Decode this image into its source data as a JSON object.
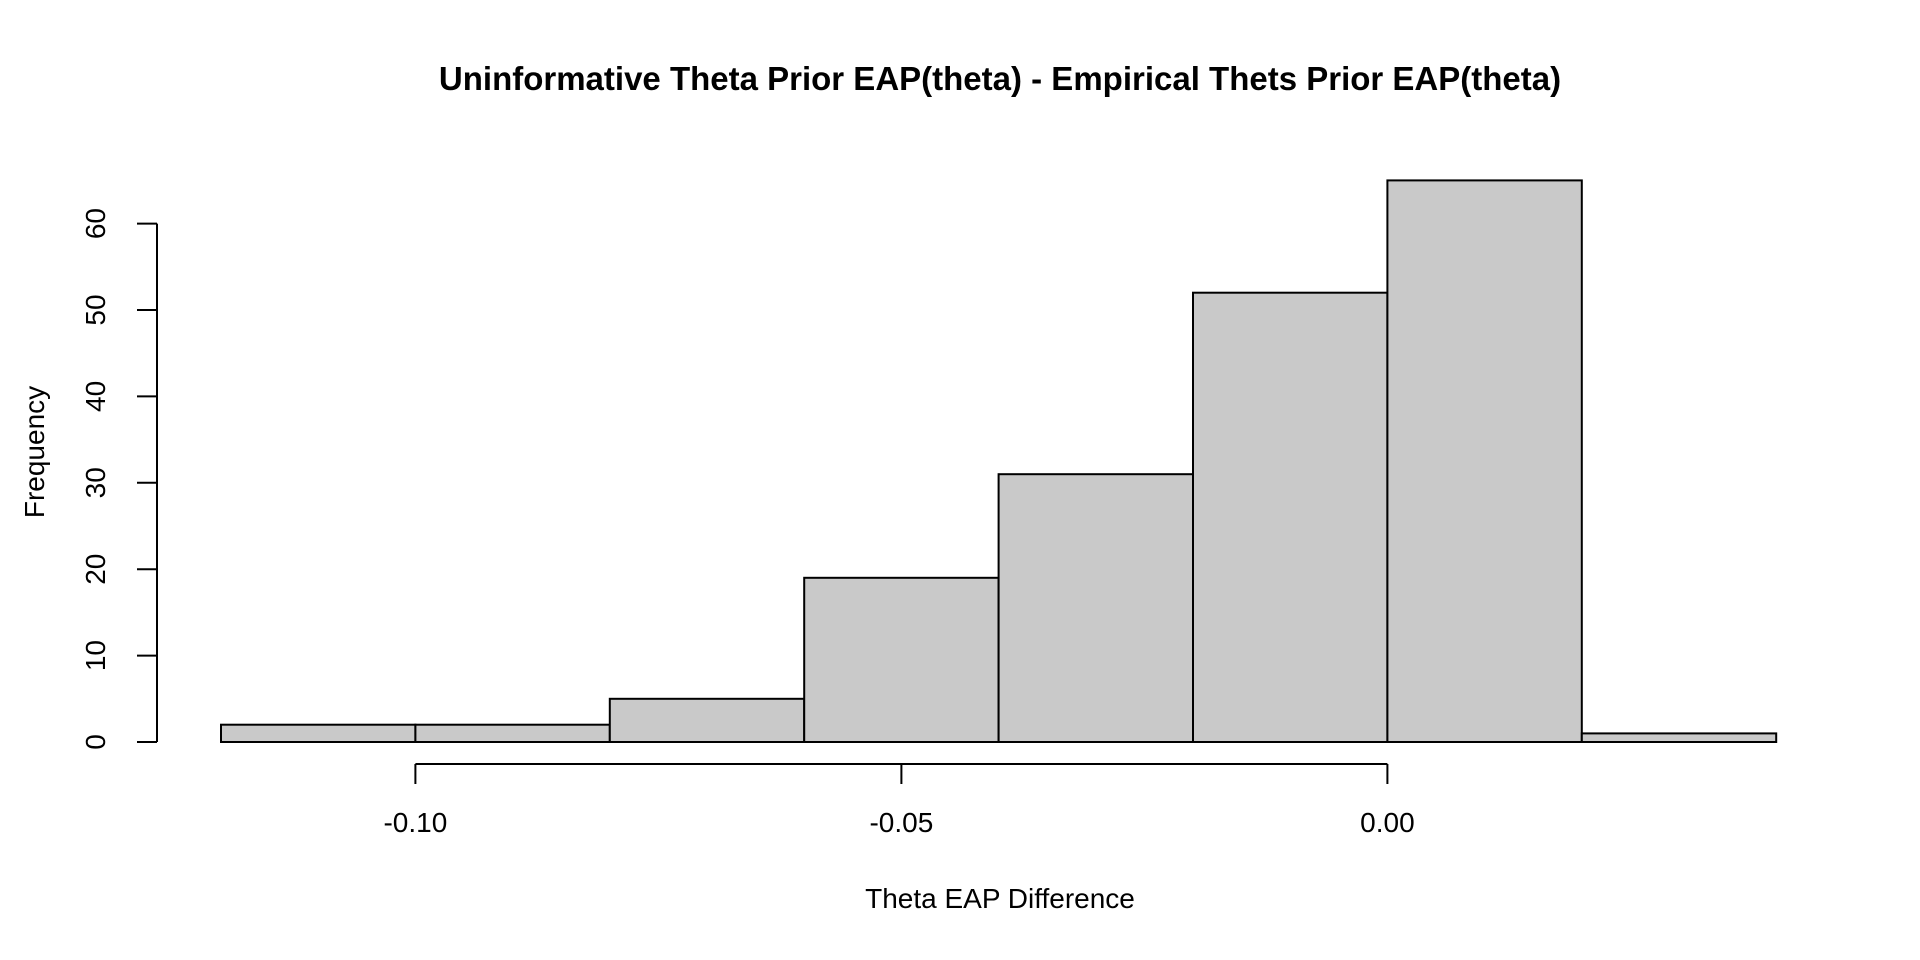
{
  "page": {
    "background": "#ffffff"
  },
  "chart_data": {
    "type": "bar",
    "subtype": "histogram",
    "title": "Uninformative Theta Prior EAP(theta) - Empirical Thets Prior EAP(theta)",
    "xlabel": "Theta EAP Difference",
    "ylabel": "Frequency",
    "bin_edges": [
      -0.12,
      -0.1,
      -0.08,
      -0.06,
      -0.04,
      -0.02,
      0.0,
      0.02,
      0.04
    ],
    "counts": [
      2,
      2,
      5,
      19,
      31,
      52,
      65,
      1
    ],
    "x_ticks": [
      -0.1,
      -0.05,
      0.0
    ],
    "x_tick_labels": [
      "-0.10",
      "-0.05",
      "0.00"
    ],
    "y_ticks": [
      0,
      10,
      20,
      30,
      40,
      50,
      60
    ],
    "y_tick_labels": [
      "0",
      "10",
      "20",
      "30",
      "40",
      "50",
      "60"
    ],
    "xlim": [
      -0.12,
      0.04
    ],
    "ylim": [
      0,
      65
    ],
    "grid": false,
    "legend": null,
    "bar_fill": "#C9C9C9",
    "bar_stroke": "#000000",
    "axis_color": "#000000",
    "text_color": "#000000"
  }
}
